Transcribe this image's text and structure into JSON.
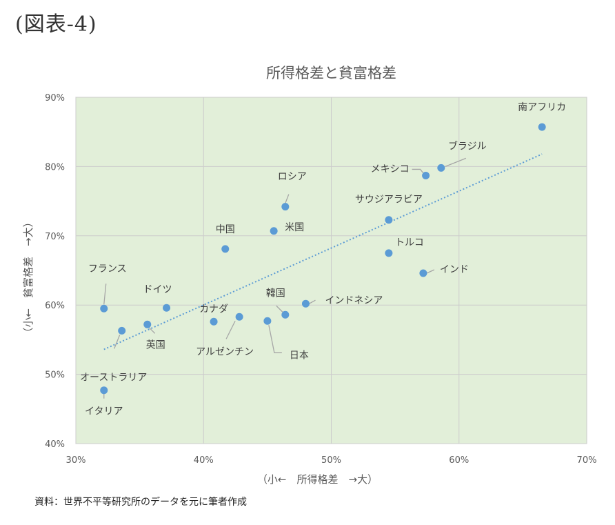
{
  "figure_label": "(図表-4)",
  "source_note": "資料：世界不平等研究所のデータを元に筆者作成",
  "colors": {
    "plot_background": "#e2efd9",
    "point": "#5b9bd5",
    "trendline": "#5b9bd5",
    "grid": "#cccccc",
    "text": "#595959"
  },
  "chart_data": {
    "type": "scatter",
    "title": "所得格差と貧富格差",
    "xlabel": "（小←　所得格差　→大）",
    "ylabel": "（小←　貧富格差　→大）",
    "xlim": [
      0.3,
      0.7
    ],
    "ylim": [
      0.4,
      0.9
    ],
    "x_ticks": [
      0.3,
      0.4,
      0.5,
      0.6,
      0.7
    ],
    "x_tick_labels": [
      "30%",
      "40%",
      "50%",
      "60%",
      "70%"
    ],
    "y_ticks": [
      0.4,
      0.5,
      0.6,
      0.7,
      0.8,
      0.9
    ],
    "y_tick_labels": [
      "40%",
      "50%",
      "60%",
      "70%",
      "80%",
      "90%"
    ],
    "grid": true,
    "trendline": {
      "style": "dotted",
      "linear": true,
      "x_range": [
        0.322,
        0.665
      ],
      "y_range": [
        0.536,
        0.818
      ]
    },
    "points": [
      {
        "label": "南アフリカ",
        "x": 0.665,
        "y": 0.857
      },
      {
        "label": "ブラジル",
        "x": 0.586,
        "y": 0.798
      },
      {
        "label": "メキシコ",
        "x": 0.574,
        "y": 0.787
      },
      {
        "label": "サウジアラビア",
        "x": 0.545,
        "y": 0.723
      },
      {
        "label": "トルコ",
        "x": 0.545,
        "y": 0.675
      },
      {
        "label": "インド",
        "x": 0.572,
        "y": 0.646
      },
      {
        "label": "ロシア",
        "x": 0.464,
        "y": 0.742
      },
      {
        "label": "米国",
        "x": 0.455,
        "y": 0.707
      },
      {
        "label": "中国",
        "x": 0.417,
        "y": 0.681
      },
      {
        "label": "インドネシア",
        "x": 0.48,
        "y": 0.602
      },
      {
        "label": "韓国",
        "x": 0.464,
        "y": 0.586
      },
      {
        "label": "日本",
        "x": 0.45,
        "y": 0.577
      },
      {
        "label": "アルゼンチン",
        "x": 0.428,
        "y": 0.583
      },
      {
        "label": "カナダ",
        "x": 0.408,
        "y": 0.576
      },
      {
        "label": "ドイツ",
        "x": 0.371,
        "y": 0.596
      },
      {
        "label": "英国",
        "x": 0.356,
        "y": 0.572
      },
      {
        "label": "フランス",
        "x": 0.322,
        "y": 0.595
      },
      {
        "label": "オーストラリア",
        "x": 0.336,
        "y": 0.563
      },
      {
        "label": "イタリア",
        "x": 0.322,
        "y": 0.477
      }
    ]
  }
}
